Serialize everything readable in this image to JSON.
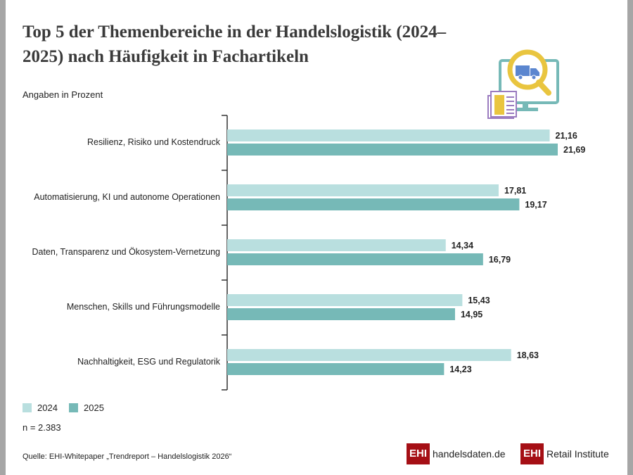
{
  "chart_data": {
    "type": "bar",
    "orientation": "horizontal",
    "title": "Top 5 der Themenbereiche in der Handelslogistik (2024–2025) nach Häufigkeit in Fachartikeln",
    "subtitle": "Angaben in Prozent",
    "categories": [
      "Resilienz, Risiko und Kostendruck",
      "Automatisierung, KI und autonome Operationen",
      "Daten, Transparenz und Ökosystem-Vernetzung",
      "Menschen, Skills und Führungsmodelle",
      "Nachhaltigkeit, ESG und Regulatorik"
    ],
    "series": [
      {
        "name": "2024",
        "values": [
          21.16,
          17.81,
          14.34,
          15.43,
          18.63
        ],
        "labels": [
          "21,16",
          "17,81",
          "14,34",
          "15,43",
          "18,63"
        ],
        "color": "#b9dfdf"
      },
      {
        "name": "2025",
        "values": [
          21.69,
          19.17,
          16.79,
          14.95,
          14.23
        ],
        "labels": [
          "21,69",
          "19,17",
          "16,79",
          "14,95",
          "14,23"
        ],
        "color": "#76b9b7"
      }
    ],
    "legend": "bottom-left",
    "grid": false
  },
  "note": "n = 2.383",
  "source": "Quelle: EHI-Whitepaper „Trendreport – Handelslogistik 2026“",
  "logos": [
    {
      "mark": "EHI",
      "text": "handelsdaten.de"
    },
    {
      "mark": "EHI",
      "text": "Retail Institute"
    }
  ],
  "brand_color": "#a50f15"
}
